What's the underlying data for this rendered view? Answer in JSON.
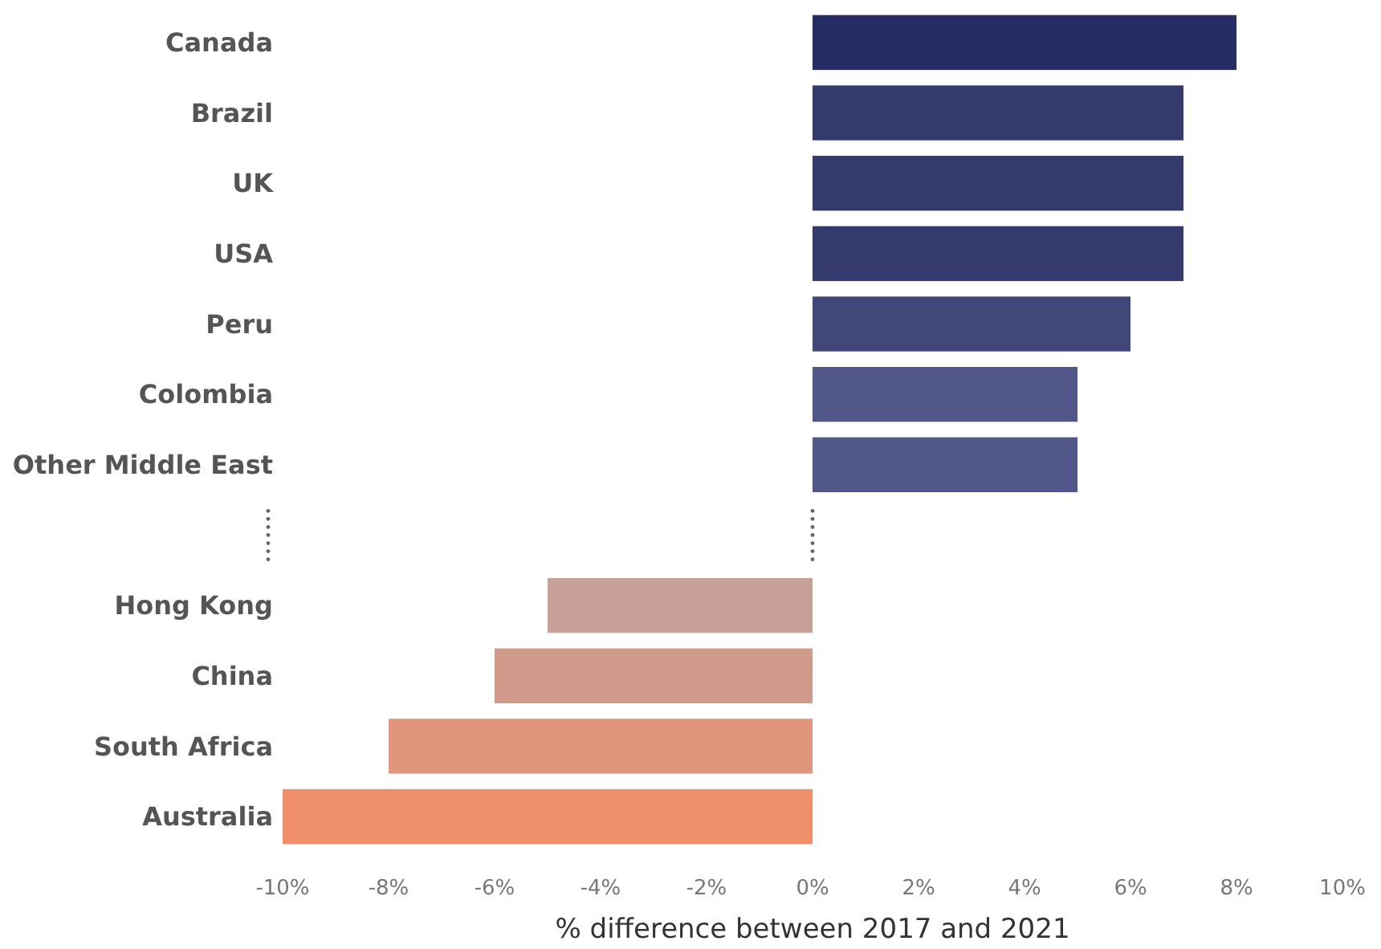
{
  "chart_data": {
    "type": "bar",
    "orientation": "horizontal",
    "xlabel": "% difference between 2017 and 2021",
    "categories": [
      "Canada",
      "Brazil",
      "UK",
      "USA",
      "Peru",
      "Colombia",
      "Other Middle East",
      null,
      "Hong Kong",
      "China",
      "South Africa",
      "Australia"
    ],
    "values": [
      8,
      7,
      7,
      7,
      6,
      5,
      5,
      null,
      -5,
      -6,
      -8,
      -10
    ],
    "colors": [
      "#262d64",
      "#343a6c",
      "#343a6c",
      "#343a6c",
      "#414879",
      "#52578a",
      "#52578a",
      null,
      "#c7a097",
      "#cf9a8a",
      "#df967c",
      "#ee8f69"
    ],
    "xlim": [
      -10,
      10
    ],
    "xticks": [
      {
        "value": -10,
        "label": "-10%"
      },
      {
        "value": -8,
        "label": "-8%"
      },
      {
        "value": -6,
        "label": "-6%"
      },
      {
        "value": -4,
        "label": "-4%"
      },
      {
        "value": -2,
        "label": "-2%"
      },
      {
        "value": 0,
        "label": "0%"
      },
      {
        "value": 2,
        "label": "2%"
      },
      {
        "value": 4,
        "label": "4%"
      },
      {
        "value": 6,
        "label": "6%"
      },
      {
        "value": 8,
        "label": "8%"
      },
      {
        "value": 10,
        "label": "10%"
      }
    ],
    "grid": false
  }
}
